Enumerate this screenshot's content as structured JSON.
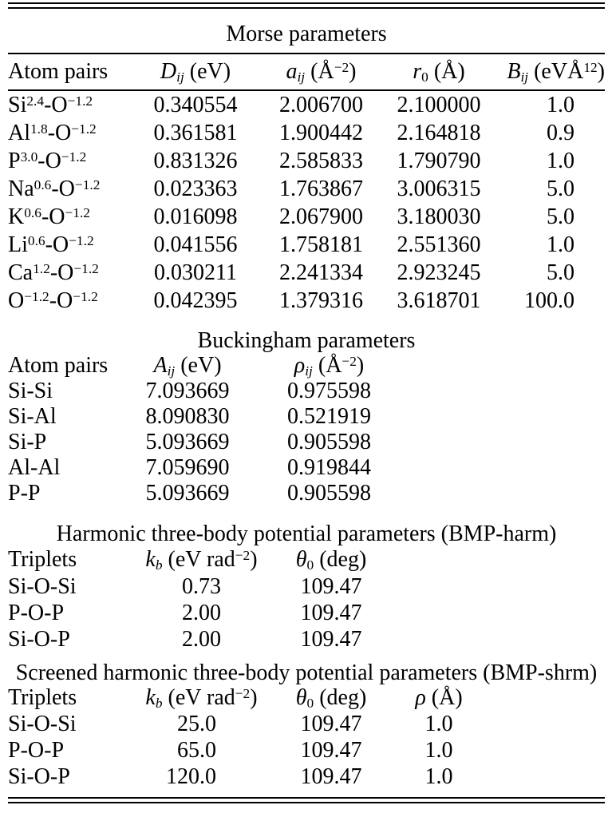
{
  "page": {
    "background": "#ffffff",
    "text_color": "#000000",
    "rule_color": "#000000"
  },
  "morse": {
    "title": "Morse parameters",
    "columns": [
      "Atom pairs",
      "*D*_{*ij*} (eV)",
      "*a*_{*ij*} (Å^{−2})",
      "*r*_{0} (Å)",
      "*B*_{*ij*} (eVÅ^{12})"
    ],
    "rows": [
      [
        "Si^{2.4}-O^{−1.2}",
        "0.340554",
        "2.006700",
        "2.100000",
        "1.0"
      ],
      [
        "Al^{1.8}-O^{−1.2}",
        "0.361581",
        "1.900442",
        "2.164818",
        "0.9"
      ],
      [
        "P^{3.0}-O^{−1.2}",
        "0.831326",
        "2.585833",
        "1.790790",
        "1.0"
      ],
      [
        "Na^{0.6}-O^{−1.2}",
        "0.023363",
        "1.763867",
        "3.006315",
        "5.0"
      ],
      [
        "K^{0.6}-O^{−1.2}",
        "0.016098",
        "2.067900",
        "3.180030",
        "5.0"
      ],
      [
        "Li^{0.6}-O^{−1.2}",
        "0.041556",
        "1.758181",
        "2.551360",
        "1.0"
      ],
      [
        "Ca^{1.2}-O^{−1.2}",
        "0.030211",
        "2.241334",
        "2.923245",
        "5.0"
      ],
      [
        "O^{−1.2}-O^{−1.2}",
        "0.042395",
        "1.379316",
        "3.618701",
        "100.0"
      ]
    ]
  },
  "buckingham": {
    "title": "Buckingham parameters",
    "columns": [
      "Atom pairs",
      "*A*_{*ij*} (eV)",
      "*ρ*_{*ij*} (Å^{−2})"
    ],
    "rows": [
      [
        "Si-Si",
        "7.093669",
        "0.975598"
      ],
      [
        "Si-Al",
        "8.090830",
        "0.521919"
      ],
      [
        "Si-P",
        "5.093669",
        "0.905598"
      ],
      [
        "Al-Al",
        "7.059690",
        "0.919844"
      ],
      [
        "P-P",
        "5.093669",
        "0.905598"
      ]
    ]
  },
  "harmonic": {
    "title": "Harmonic three-body potential parameters (BMP-harm)",
    "columns": [
      "Triplets",
      "*k*_{*b*} (eV rad^{−2})",
      "*θ*_{0} (deg)"
    ],
    "rows": [
      [
        "Si-O-Si",
        "0.73",
        "109.47"
      ],
      [
        "P-O-P",
        "2.00",
        "109.47"
      ],
      [
        "Si-O-P",
        "2.00",
        "109.47"
      ]
    ]
  },
  "screened": {
    "title": "Screened harmonic three-body potential parameters (BMP-shrm)",
    "columns": [
      "Triplets",
      "*k*_{*b*} (eV rad^{−2})",
      "*θ*_{0} (deg)",
      "*ρ* (Å)"
    ],
    "rows": [
      [
        "Si-O-Si",
        "25.0",
        "109.47",
        "1.0"
      ],
      [
        "P-O-P",
        "65.0",
        "109.47",
        "1.0"
      ],
      [
        "Si-O-P",
        "120.0",
        "109.47",
        "1.0"
      ]
    ]
  }
}
